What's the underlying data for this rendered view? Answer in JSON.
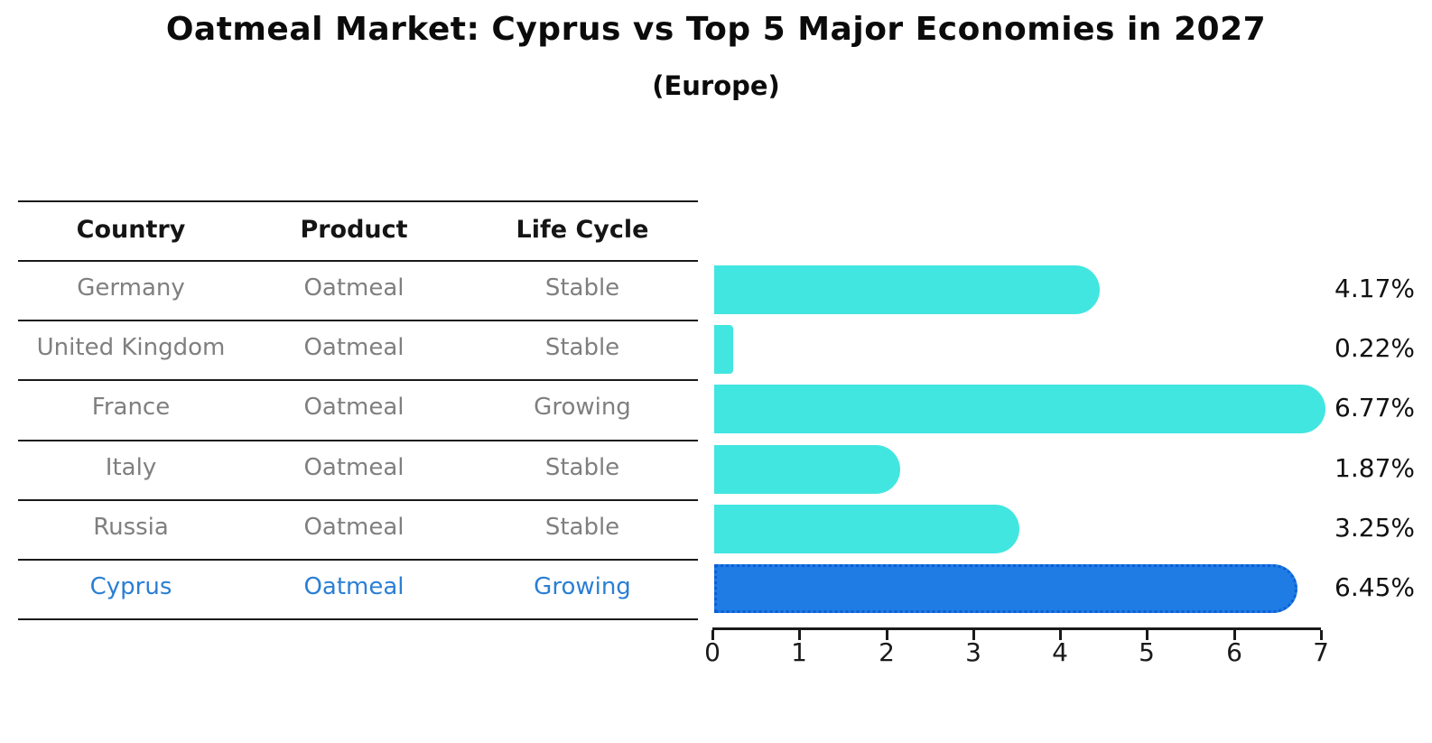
{
  "title": "Oatmeal Market: Cyprus vs Top 5 Major Economies in 2027",
  "subtitle": "(Europe)",
  "table": {
    "headers": [
      "Country",
      "Product",
      "Life Cycle"
    ],
    "rows": [
      {
        "country": "Germany",
        "product": "Oatmeal",
        "life_cycle": "Stable",
        "highlight": false
      },
      {
        "country": "United Kingdom",
        "product": "Oatmeal",
        "life_cycle": "Stable",
        "highlight": false
      },
      {
        "country": "France",
        "product": "Oatmeal",
        "life_cycle": "Growing",
        "highlight": false
      },
      {
        "country": "Italy",
        "product": "Oatmeal",
        "life_cycle": "Stable",
        "highlight": false
      },
      {
        "country": "Russia",
        "product": "Oatmeal",
        "life_cycle": "Stable",
        "highlight": false
      },
      {
        "country": "Cyprus",
        "product": "Oatmeal",
        "life_cycle": "Growing",
        "highlight": true
      }
    ]
  },
  "chart_data": {
    "type": "bar",
    "orientation": "horizontal",
    "categories": [
      "Germany",
      "United Kingdom",
      "France",
      "Italy",
      "Russia",
      "Cyprus"
    ],
    "values": [
      4.17,
      0.22,
      6.77,
      1.87,
      3.25,
      6.45
    ],
    "value_labels": [
      "4.17%",
      "0.22%",
      "6.77%",
      "1.87%",
      "3.25%",
      "6.45%"
    ],
    "xlim": [
      0,
      7
    ],
    "xticks": [
      "0",
      "1",
      "2",
      "3",
      "4",
      "5",
      "6",
      "7"
    ],
    "grid": false,
    "legend_position": "none",
    "bar_color": "#42e6e0",
    "highlight_color": "#1e7ce4",
    "highlight_index": 5,
    "highlight_text_color": "#2a7fd4"
  }
}
